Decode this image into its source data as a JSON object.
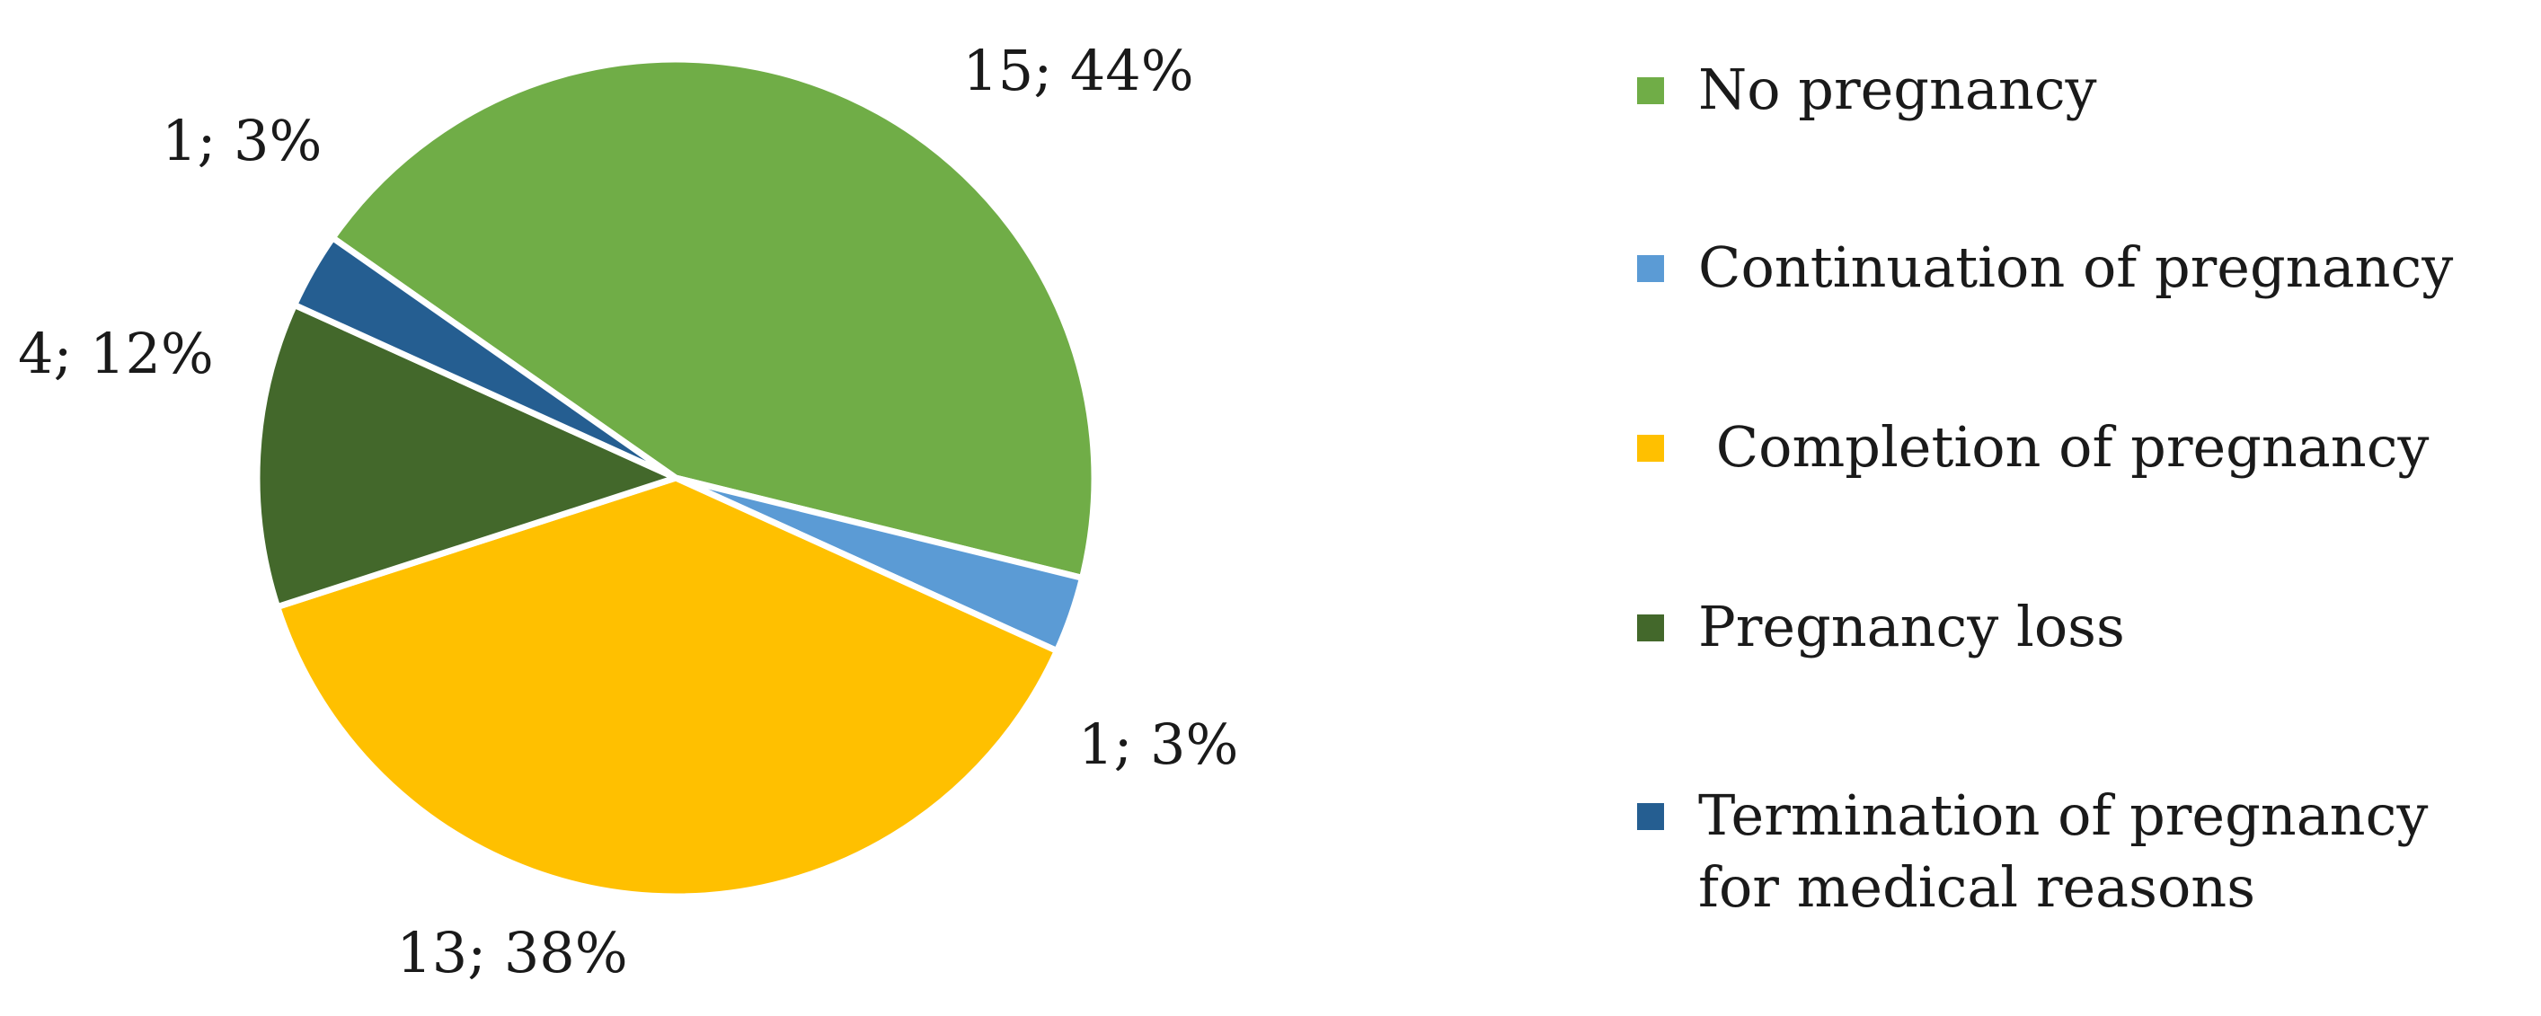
{
  "chart_data": {
    "type": "pie",
    "title": "",
    "slices": [
      {
        "label": "No pregnancy",
        "value": 15,
        "percent": 44,
        "display": "15; 44%",
        "color": "#70ad47"
      },
      {
        "label": "Continuation of pregnancy",
        "value": 1,
        "percent": 3,
        "display": "1; 3%",
        "color": "#5b9bd5"
      },
      {
        "label": " Completion of pregnancy",
        "value": 13,
        "percent": 38,
        "display": "13; 38%",
        "color": "#ffc000"
      },
      {
        "label": "Pregnancy loss",
        "value": 4,
        "percent": 12,
        "display": "4; 12%",
        "color": "#43682b"
      },
      {
        "label": "Termination of pregnancy\nfor medical reasons",
        "value": 1,
        "percent": 3,
        "display": "1; 3%",
        "color": "#255e91"
      }
    ],
    "legend": {
      "position": "right",
      "items": [
        "No pregnancy",
        "Continuation of pregnancy",
        " Completion of pregnancy",
        "Pregnancy loss",
        "Termination of pregnancy\nfor medical reasons"
      ]
    }
  }
}
